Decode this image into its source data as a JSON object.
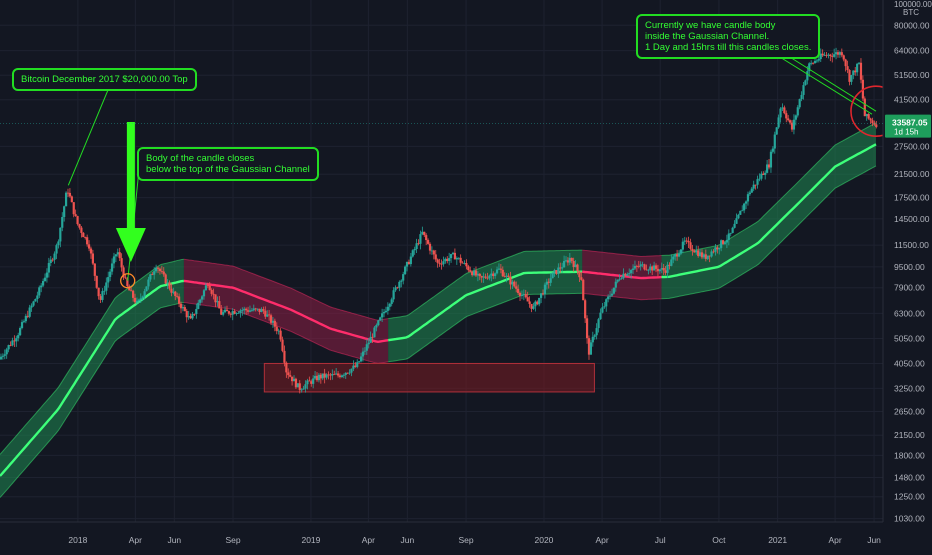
{
  "colors": {
    "background": "#131722",
    "grid": "#1e2230",
    "candle_up": "#26a69a",
    "candle_down": "#ef5350",
    "channel_up_fill": "#1f8a52",
    "channel_down_fill": "#8e1f45",
    "midline_up": "#3dff7a",
    "midline_down": "#ff2d6b",
    "annotation": "#22dd22",
    "annotation_text": "#33ff33",
    "circle": "#e0262d",
    "arrow": "#32ff1e",
    "box": "#7a1c22"
  },
  "chart_data": {
    "type": "candlestick",
    "yscale": "log",
    "ylim": [
      1000,
      100000
    ],
    "xlim": [
      "2017-09-01",
      "2021-06-15"
    ],
    "y_axis_header": [
      "100000.00",
      "BTC"
    ],
    "y_tick_labels": [
      "80000.00",
      "64000.00",
      "51500.00",
      "41500.00",
      "27500.00",
      "21500.00",
      "17500.00",
      "14500.00",
      "11500.00",
      "9500.00",
      "7900.00",
      "6300.00",
      "5050.00",
      "4050.00",
      "3250.00",
      "2650.00",
      "2150.00",
      "1800.00",
      "1480.00",
      "1250.00",
      "1030.00"
    ],
    "x_tick_labels": [
      {
        "date": "2018-01-01",
        "label": "2018"
      },
      {
        "date": "2018-04-01",
        "label": "Apr"
      },
      {
        "date": "2018-06-01",
        "label": "Jun"
      },
      {
        "date": "2018-09-01",
        "label": "Sep"
      },
      {
        "date": "2019-01-01",
        "label": "2019"
      },
      {
        "date": "2019-04-01",
        "label": "Apr"
      },
      {
        "date": "2019-06-01",
        "label": "Jun"
      },
      {
        "date": "2019-09-01",
        "label": "Sep"
      },
      {
        "date": "2020-01-01",
        "label": "2020"
      },
      {
        "date": "2020-04-01",
        "label": "Apr"
      },
      {
        "date": "2020-07-01",
        "label": "Jul"
      },
      {
        "date": "2020-10-01",
        "label": "Oct"
      },
      {
        "date": "2021-01-01",
        "label": "2021"
      },
      {
        "date": "2021-04-01",
        "label": "Apr"
      },
      {
        "date": "2021-06-01",
        "label": "Jun"
      }
    ],
    "last_price": {
      "value": "33587.05",
      "countdown": "1d 15h"
    },
    "price_path": [
      [
        "2017-09-01",
        4200
      ],
      [
        "2017-10-01",
        5300
      ],
      [
        "2017-11-01",
        7500
      ],
      [
        "2017-12-01",
        11500
      ],
      [
        "2017-12-17",
        19000
      ],
      [
        "2018-01-01",
        14000
      ],
      [
        "2018-01-20",
        11500
      ],
      [
        "2018-02-06",
        7000
      ],
      [
        "2018-03-05",
        11000
      ],
      [
        "2018-03-20",
        8000
      ],
      [
        "2018-04-06",
        6800
      ],
      [
        "2018-05-05",
        9700
      ],
      [
        "2018-06-01",
        7500
      ],
      [
        "2018-06-28",
        5900
      ],
      [
        "2018-07-25",
        8300
      ],
      [
        "2018-08-15",
        6300
      ],
      [
        "2018-09-15",
        6500
      ],
      [
        "2018-10-20",
        6450
      ],
      [
        "2018-11-15",
        5300
      ],
      [
        "2018-11-25",
        3800
      ],
      [
        "2018-12-15",
        3250
      ],
      [
        "2019-01-15",
        3600
      ],
      [
        "2019-02-15",
        3650
      ],
      [
        "2019-03-15",
        3950
      ],
      [
        "2019-04-05",
        5000
      ],
      [
        "2019-05-15",
        7800
      ],
      [
        "2019-06-26",
        12800
      ],
      [
        "2019-07-20",
        9800
      ],
      [
        "2019-08-15",
        10500
      ],
      [
        "2019-09-25",
        8500
      ],
      [
        "2019-10-25",
        9300
      ],
      [
        "2019-12-17",
        6600
      ],
      [
        "2020-01-15",
        8800
      ],
      [
        "2020-02-13",
        10300
      ],
      [
        "2020-03-01",
        8600
      ],
      [
        "2020-03-12",
        4400
      ],
      [
        "2020-04-01",
        6400
      ],
      [
        "2020-05-01",
        8800
      ],
      [
        "2020-06-01",
        9600
      ],
      [
        "2020-07-10",
        9200
      ],
      [
        "2020-08-10",
        11800
      ],
      [
        "2020-09-10",
        10300
      ],
      [
        "2020-10-20",
        12500
      ],
      [
        "2020-11-20",
        18500
      ],
      [
        "2020-12-20",
        23500
      ],
      [
        "2021-01-08",
        40000
      ],
      [
        "2021-01-25",
        32000
      ],
      [
        "2021-02-20",
        56000
      ],
      [
        "2021-03-13",
        61000
      ],
      [
        "2021-04-14",
        63000
      ],
      [
        "2021-04-25",
        50000
      ],
      [
        "2021-05-10",
        57000
      ],
      [
        "2021-05-19",
        36000
      ],
      [
        "2021-06-04",
        33587
      ]
    ],
    "gaussian_channel_mid": [
      [
        "2017-09-01",
        1500
      ],
      [
        "2017-12-01",
        2700
      ],
      [
        "2018-03-01",
        6000
      ],
      [
        "2018-05-10",
        8000
      ],
      [
        "2018-06-15",
        8400
      ],
      [
        "2018-09-01",
        7900
      ],
      [
        "2018-12-01",
        6500
      ],
      [
        "2019-02-01",
        5500
      ],
      [
        "2019-04-15",
        4900
      ],
      [
        "2019-06-01",
        5100
      ],
      [
        "2019-09-01",
        7400
      ],
      [
        "2019-12-01",
        9000
      ],
      [
        "2020-03-01",
        9100
      ],
      [
        "2020-06-01",
        8600
      ],
      [
        "2020-07-15",
        8700
      ],
      [
        "2020-10-01",
        9500
      ],
      [
        "2020-12-01",
        11700
      ],
      [
        "2021-02-01",
        16500
      ],
      [
        "2021-04-01",
        23000
      ],
      [
        "2021-06-04",
        28000
      ]
    ],
    "channel_half_width_factor": 1.21,
    "red_channel_periods": [
      [
        "2018-06-15",
        "2019-05-01"
      ],
      [
        "2020-03-01",
        "2020-07-01"
      ]
    ],
    "red_box": {
      "x": [
        "2018-10-20",
        "2020-03-20"
      ],
      "y": [
        3150,
        4050
      ]
    },
    "circle_marker": {
      "date": "2021-06-04",
      "price": 37500
    },
    "small_circle_marker": {
      "date": "2018-03-20",
      "price": 8400
    }
  },
  "annotations": [
    {
      "text": "Bitcoin December 2017 $20,000.00 Top"
    },
    {
      "text": "Body of the candle closes\nbelow the top of the Gaussian Channel"
    },
    {
      "text": "Currently we have candle body\ninside the Gaussian Channel.\n1 Day and 15hrs till this candles closes."
    }
  ]
}
